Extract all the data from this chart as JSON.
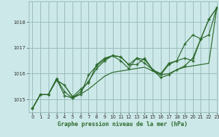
{
  "title": "Graphe pression niveau de la mer (hPa)",
  "background_color": "#cce8e8",
  "plot_background": "#cce8e8",
  "grid_color": "#99bbbb",
  "line_color": "#2d6a2d",
  "xlim": [
    -0.5,
    23
  ],
  "ylim": [
    1014.5,
    1018.8
  ],
  "yticks": [
    1015,
    1016,
    1017,
    1018
  ],
  "xticks": [
    0,
    1,
    2,
    3,
    4,
    5,
    6,
    7,
    8,
    9,
    10,
    11,
    12,
    13,
    14,
    15,
    16,
    17,
    18,
    19,
    20,
    21,
    22,
    23
  ],
  "series1_x": [
    0,
    1,
    2,
    3,
    4,
    5,
    6,
    7,
    8,
    9,
    10,
    11,
    12,
    13,
    14,
    15,
    16,
    17,
    18,
    19,
    20,
    21,
    22,
    23
  ],
  "series1_y": [
    1014.65,
    1015.2,
    1015.2,
    1015.75,
    1015.55,
    1015.1,
    1015.2,
    1015.4,
    1015.65,
    1015.9,
    1016.05,
    1016.1,
    1016.15,
    1016.2,
    1016.25,
    1016.1,
    1015.95,
    1016.0,
    1016.15,
    1016.25,
    1016.3,
    1016.35,
    1016.4,
    1018.55
  ],
  "series2_x": [
    0,
    1,
    2,
    3,
    4,
    5,
    6,
    7,
    8,
    9,
    10,
    11,
    12,
    13,
    14,
    15,
    16,
    17,
    18,
    19,
    20,
    21,
    22,
    23
  ],
  "series2_y": [
    1014.65,
    1015.2,
    1015.2,
    1015.75,
    1015.55,
    1015.1,
    1015.4,
    1015.65,
    1016.35,
    1016.6,
    1016.7,
    1016.65,
    1016.35,
    1016.35,
    1016.6,
    1016.15,
    1015.85,
    1015.95,
    1016.15,
    1016.3,
    1016.6,
    1017.35,
    1018.1,
    1018.55
  ],
  "series3_x": [
    0,
    1,
    2,
    3,
    4,
    5,
    6,
    7,
    8,
    9,
    10,
    11,
    12,
    13,
    14,
    15,
    16,
    17,
    18,
    19,
    20,
    21,
    22,
    23
  ],
  "series3_y": [
    1014.65,
    1015.2,
    1015.2,
    1015.8,
    1015.15,
    1015.05,
    1015.2,
    1015.95,
    1016.3,
    1016.55,
    1016.7,
    1016.65,
    1016.35,
    1016.6,
    1016.55,
    1016.15,
    1015.95,
    1016.35,
    1016.5,
    1017.15,
    1017.5,
    1017.35,
    1018.1,
    1018.55
  ],
  "series4_x": [
    0,
    1,
    2,
    3,
    4,
    5,
    6,
    7,
    8,
    9,
    10,
    11,
    12,
    13,
    14,
    15,
    16,
    17,
    18,
    19,
    20,
    21,
    22,
    23
  ],
  "series4_y": [
    1014.65,
    1015.2,
    1015.2,
    1015.8,
    1015.3,
    1015.05,
    1015.3,
    1015.7,
    1016.2,
    1016.5,
    1016.7,
    1016.5,
    1016.2,
    1016.6,
    1016.4,
    1016.15,
    1016.0,
    1016.4,
    1016.5,
    1016.6,
    1016.5,
    1017.35,
    1017.5,
    1018.55
  ]
}
